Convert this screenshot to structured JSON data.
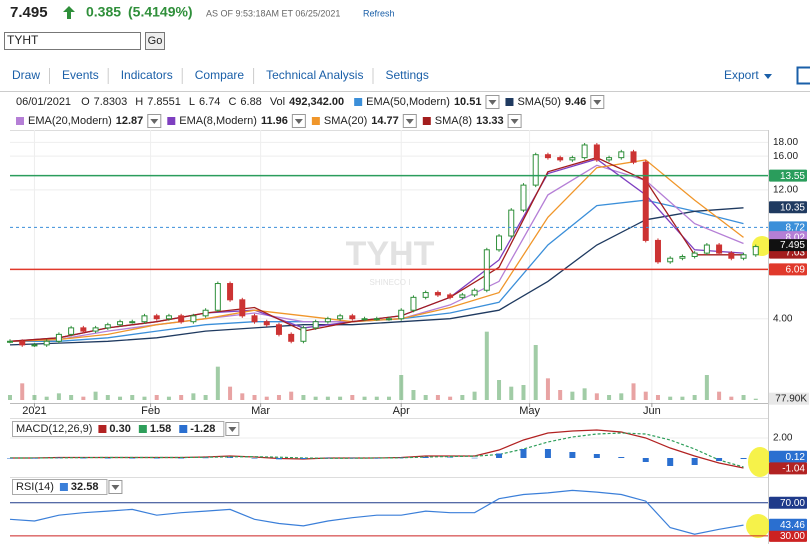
{
  "header": {
    "price": 7.495,
    "change": 0.385,
    "change_pct": "(5.4149%)",
    "as_of": "AS OF 9:53:18AM ET 06/25/2021",
    "refresh": "Refresh",
    "symbol": "TYHT",
    "go": "Go"
  },
  "menu": [
    "Draw",
    "Events",
    "Indicators",
    "Compare",
    "Technical Analysis",
    "Settings"
  ],
  "export": "Export",
  "legend": {
    "date": "06/01/2021",
    "ohlc": [
      {
        "label": "O",
        "value": 7.8303
      },
      {
        "label": "H",
        "value": 7.8551
      },
      {
        "label": "L",
        "value": 6.74
      },
      {
        "label": "C",
        "value": 6.88
      }
    ],
    "vol_label": "Vol",
    "vol": "492,342.00"
  },
  "chart_data": [
    {
      "type": "candlestick",
      "log_scale": true,
      "grid": true,
      "watermark": "TYHT",
      "watermark_sub": "SHINECO I",
      "up_color": "#2f8f3a",
      "down_color": "#cc3333",
      "xlim": [
        0,
        124
      ],
      "xticks": [
        {
          "value": 4,
          "label": "2021"
        },
        {
          "value": 23,
          "label": "Feb"
        },
        {
          "value": 41,
          "label": "Mar"
        },
        {
          "value": 64,
          "label": "Apr"
        },
        {
          "value": 85,
          "label": "May"
        },
        {
          "value": 105,
          "label": "Jun"
        }
      ],
      "ylim": [
        2,
        20
      ],
      "yticks": [
        {
          "value": 4,
          "label": "4.00"
        },
        {
          "value": 12,
          "label": "12.00"
        },
        {
          "value": 16,
          "label": "16.00"
        },
        {
          "value": 18,
          "label": "18.00"
        }
      ],
      "x": [
        0,
        2,
        4,
        6,
        8,
        10,
        12,
        14,
        16,
        18,
        20,
        22,
        24,
        26,
        28,
        30,
        32,
        34,
        36,
        38,
        40,
        42,
        44,
        46,
        48,
        50,
        52,
        54,
        56,
        58,
        60,
        62,
        64,
        66,
        68,
        70,
        72,
        74,
        76,
        78,
        80,
        82,
        84,
        86,
        88,
        90,
        92,
        94,
        96,
        98,
        100,
        102,
        104,
        106,
        108,
        110,
        112,
        114,
        116,
        118,
        120,
        122
      ],
      "values": [
        3.3,
        3.2,
        3.2,
        3.3,
        3.5,
        3.7,
        3.6,
        3.7,
        3.8,
        3.9,
        3.9,
        4.1,
        4.0,
        4.1,
        3.9,
        4.1,
        4.3,
        5.4,
        4.7,
        4.1,
        3.9,
        3.8,
        3.5,
        3.3,
        3.7,
        3.9,
        4.0,
        4.1,
        4.0,
        4.0,
        4.0,
        4.0,
        4.3,
        4.8,
        5.0,
        4.9,
        4.8,
        4.9,
        5.1,
        7.2,
        8.1,
        10.1,
        12.5,
        16.2,
        15.8,
        15.5,
        15.8,
        17.6,
        15.5,
        15.8,
        16.6,
        15.2,
        7.8,
        6.5,
        6.7,
        6.8,
        7.0,
        7.5,
        7.0,
        6.7,
        6.9,
        7.4
      ],
      "volume": {
        "ylim": [
          0,
          4500000
        ],
        "last_label": {
          "value": 77900,
          "label": "77.90K"
        },
        "values": [
          300000,
          1000000,
          300000,
          200000,
          400000,
          300000,
          200000,
          500000,
          300000,
          200000,
          300000,
          200000,
          300000,
          200000,
          300000,
          400000,
          300000,
          2000000,
          800000,
          400000,
          300000,
          200000,
          300000,
          500000,
          300000,
          200000,
          200000,
          200000,
          300000,
          200000,
          200000,
          200000,
          1500000,
          600000,
          300000,
          300000,
          200000,
          300000,
          500000,
          4100000,
          1200000,
          800000,
          900000,
          3300000,
          1300000,
          600000,
          500000,
          700000,
          400000,
          300000,
          400000,
          1000000,
          500000,
          300000,
          200000,
          200000,
          300000,
          1500000,
          500000,
          200000,
          300000,
          77900
        ]
      },
      "series": [
        {
          "name": "EMA(50,Modern)",
          "value": 10.51,
          "color": "#3b8fd9",
          "x": [
            0,
            8,
            16,
            24,
            32,
            40,
            48,
            56,
            64,
            72,
            80,
            88,
            96,
            104,
            112,
            120
          ],
          "values": [
            3.3,
            3.3,
            3.4,
            3.6,
            3.8,
            3.9,
            3.9,
            3.9,
            4.0,
            4.2,
            4.6,
            7.5,
            10.5,
            11.0,
            10.0,
            9.0
          ]
        },
        {
          "name": "SMA(50)",
          "value": 9.46,
          "color": "#1f3a60",
          "x": [
            0,
            8,
            16,
            24,
            32,
            40,
            48,
            56,
            64,
            72,
            80,
            88,
            96,
            104,
            112,
            120
          ],
          "values": [
            3.2,
            3.25,
            3.3,
            3.4,
            3.6,
            3.7,
            3.8,
            3.8,
            3.9,
            4.0,
            4.3,
            5.5,
            7.5,
            9.3,
            10.0,
            10.3
          ]
        },
        {
          "name": "EMA(20,Modern)",
          "value": 12.87,
          "color": "#b57fd6",
          "x": [
            0,
            8,
            16,
            24,
            32,
            40,
            48,
            56,
            64,
            72,
            80,
            88,
            96,
            104,
            112,
            120
          ],
          "values": [
            3.3,
            3.35,
            3.6,
            3.8,
            4.0,
            4.2,
            3.9,
            3.9,
            4.0,
            4.5,
            5.5,
            11.5,
            14.8,
            13.0,
            9.0,
            7.6
          ]
        },
        {
          "name": "EMA(8,Modern)",
          "value": 11.96,
          "color": "#7e3fc0",
          "x": [
            0,
            8,
            16,
            24,
            32,
            40,
            48,
            56,
            64,
            72,
            80,
            88,
            96,
            104,
            112,
            120
          ],
          "values": [
            3.3,
            3.4,
            3.7,
            3.9,
            4.2,
            4.3,
            3.7,
            3.9,
            4.1,
            4.8,
            6.6,
            13.8,
            15.6,
            11.5,
            7.2,
            7.0
          ]
        },
        {
          "name": "SMA(20)",
          "value": 14.77,
          "color": "#f0962a",
          "x": [
            0,
            8,
            16,
            24,
            32,
            40,
            48,
            56,
            64,
            72,
            80,
            88,
            96,
            104,
            112,
            120
          ],
          "values": [
            3.3,
            3.35,
            3.5,
            3.8,
            4.0,
            4.3,
            4.1,
            3.9,
            4.0,
            4.4,
            5.0,
            9.5,
            14.5,
            15.5,
            11.0,
            8.0
          ]
        },
        {
          "name": "SMA(8)",
          "value": 13.33,
          "color": "#a31d1d",
          "x": [
            0,
            8,
            16,
            24,
            32,
            40,
            48,
            56,
            64,
            72,
            80,
            88,
            96,
            104,
            112,
            120
          ],
          "values": [
            3.3,
            3.4,
            3.7,
            3.9,
            4.2,
            4.4,
            3.6,
            3.9,
            4.1,
            4.8,
            6.2,
            14.0,
            15.8,
            13.0,
            6.9,
            6.9
          ]
        }
      ],
      "annotations": [
        {
          "value": 13.55,
          "color": "#2a9d5c",
          "line": "solid"
        },
        {
          "value": 10.35,
          "color": "#1f3a60"
        },
        {
          "value": 8.72,
          "color": "#3b8fd9",
          "line": "dashed"
        },
        {
          "value": 8.02,
          "color": "#b57fd6"
        },
        {
          "value": 7.03,
          "color": "#a31d1d"
        },
        {
          "value": 7.495,
          "color": "#111111"
        },
        {
          "value": 6.09,
          "color": "#e0392b",
          "line": "solid"
        }
      ]
    },
    {
      "type": "line",
      "title": "MACD(12,26,9)",
      "xlim": [
        0,
        124
      ],
      "ylim": [
        -1.8,
        3.8
      ],
      "yticks": [
        {
          "value": 2,
          "label": "2.00"
        }
      ],
      "x": [
        0,
        4,
        8,
        12,
        16,
        20,
        24,
        28,
        32,
        36,
        40,
        44,
        48,
        52,
        56,
        60,
        64,
        68,
        72,
        76,
        80,
        84,
        88,
        92,
        96,
        100,
        104,
        108,
        112,
        116,
        120
      ],
      "series": [
        {
          "color": "#b22222",
          "style": "line",
          "value": 0.3,
          "value_label": "0.30",
          "values": [
            0,
            0,
            0.05,
            0.05,
            0.05,
            0.05,
            0.05,
            0.05,
            0.1,
            0.2,
            0.1,
            -0.05,
            -0.1,
            0,
            0,
            0,
            0.05,
            0.2,
            0.2,
            0.2,
            0.8,
            1.8,
            2.5,
            2.7,
            2.8,
            2.6,
            2.0,
            1.0,
            0.2,
            -0.5,
            -1.0
          ]
        },
        {
          "color": "#2e9e5a",
          "style": "dashed",
          "value": 1.58,
          "values": [
            0,
            0,
            0.02,
            0.04,
            0.05,
            0.05,
            0.05,
            0.05,
            0.07,
            0.12,
            0.13,
            0.08,
            0,
            -0.03,
            -0.02,
            0,
            0.02,
            0.1,
            0.15,
            0.18,
            0.35,
            0.9,
            1.6,
            2.1,
            2.4,
            2.5,
            2.4,
            1.8,
            0.9,
            -0.2,
            -0.9
          ]
        },
        {
          "color": "#2a6fd0",
          "style": "bar",
          "value": -1.28,
          "values": [
            0,
            0,
            0.03,
            0.01,
            0,
            0,
            0,
            0,
            0.03,
            0.08,
            -0.03,
            -0.13,
            -0.1,
            0.03,
            0.02,
            0,
            0.03,
            0.1,
            0.05,
            0.02,
            0.45,
            0.9,
            0.9,
            0.6,
            0.4,
            0.1,
            -0.4,
            -0.8,
            -0.7,
            -0.3,
            -0.1
          ]
        }
      ],
      "annotations": [
        {
          "value": 0.12,
          "color": "#2a6fd0"
        },
        {
          "value": -1.04,
          "color": "#b22222"
        }
      ]
    },
    {
      "type": "line",
      "title": "RSI(14)",
      "xlim": [
        0,
        124
      ],
      "ylim": [
        25,
        100
      ],
      "yticks": [
        {
          "value": 70,
          "label": "70.00"
        },
        {
          "value": 30,
          "label": "30.00"
        }
      ],
      "tick_colors": [
        "#1f3a8a",
        "#cc2222"
      ],
      "x": [
        0,
        4,
        8,
        12,
        16,
        20,
        24,
        28,
        32,
        36,
        40,
        44,
        48,
        52,
        56,
        60,
        64,
        68,
        72,
        76,
        80,
        84,
        88,
        92,
        96,
        100,
        104,
        108,
        112,
        116,
        120
      ],
      "series": [
        {
          "color": "#3b7fd9",
          "style": "line",
          "value": 32.58,
          "values": [
            50,
            48,
            55,
            58,
            60,
            62,
            55,
            58,
            60,
            62,
            50,
            45,
            42,
            48,
            52,
            55,
            55,
            60,
            58,
            58,
            75,
            80,
            82,
            85,
            83,
            80,
            72,
            40,
            32,
            38,
            43
          ]
        }
      ],
      "annotations": [
        {
          "value": 43.46,
          "color": "#2a6fd0"
        }
      ]
    }
  ]
}
